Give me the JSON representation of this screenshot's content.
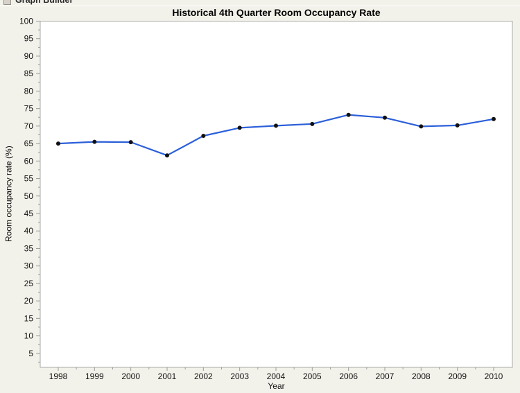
{
  "window": {
    "header_title": "Graph Builder"
  },
  "chart_data": {
    "type": "line",
    "title": "Historical 4th Quarter Room Occupancy Rate",
    "xlabel": "Year",
    "ylabel": "Room occupancy rate (%)",
    "x": [
      1998,
      1999,
      2000,
      2001,
      2002,
      2003,
      2004,
      2005,
      2006,
      2007,
      2008,
      2009,
      2010
    ],
    "series": [
      {
        "name": "Room occupancy rate (%)",
        "values": [
          65.0,
          65.5,
          65.4,
          61.6,
          67.2,
          69.5,
          70.1,
          70.6,
          73.2,
          72.4,
          69.9,
          70.2,
          72.0
        ]
      }
    ],
    "ylim": [
      1,
      100
    ],
    "yticks": [
      5,
      10,
      15,
      20,
      25,
      30,
      35,
      40,
      45,
      50,
      55,
      60,
      65,
      70,
      75,
      80,
      85,
      90,
      95,
      100
    ],
    "grid": false,
    "legend": "none",
    "line_color": "#2B5FD9",
    "marker_color": "#111111",
    "plot_bg": "#FFFFFF",
    "plot_border_color": "#A8A8A8",
    "tick_color": "#9B9B9B",
    "page_bg": "#F3F2EA"
  }
}
